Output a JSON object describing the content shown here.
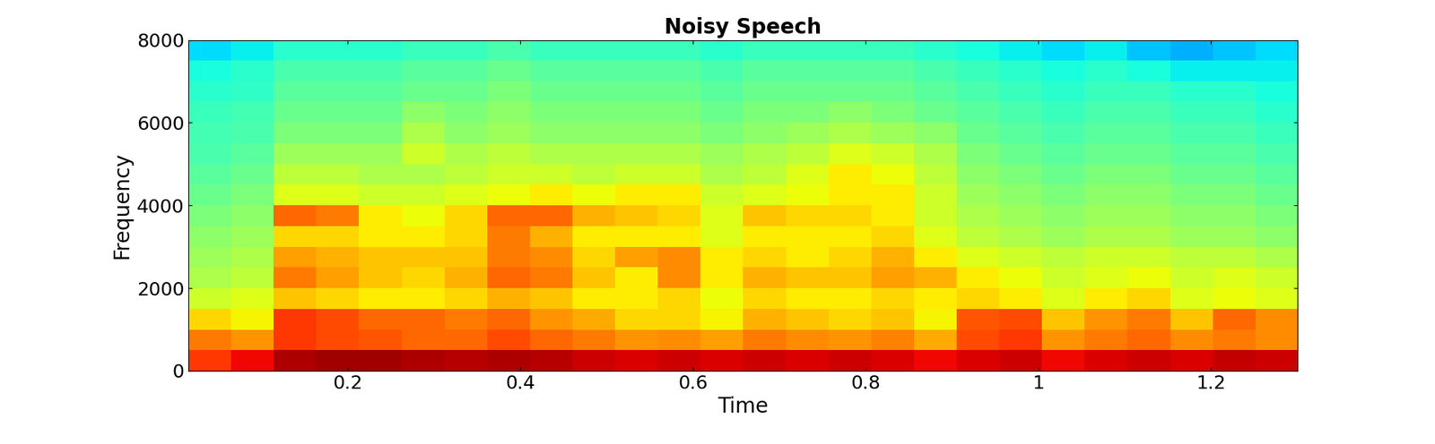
{
  "chart_data": {
    "type": "heatmap",
    "title": "Noisy Speech",
    "x_label": "Time",
    "y_label": "Frequency",
    "xlim": [
      0.015,
      1.3
    ],
    "xticks": [
      0.2,
      0.4,
      0.6,
      0.8,
      1,
      1.2
    ],
    "ylim": [
      0,
      8000
    ],
    "yticks": [
      0,
      2000,
      4000,
      6000,
      8000
    ],
    "color": "jet",
    "color_range": [
      0,
      10
    ],
    "cells": [
      [
        8.5,
        9,
        9.6,
        9.7,
        9.7,
        9.6,
        9.5,
        9.6,
        9.5,
        9.3,
        9.2,
        9.3,
        9.2,
        9.3,
        9.2,
        9.3,
        9.2,
        9.0,
        9.2,
        9.3,
        9.0,
        9.2,
        9.3,
        9.2,
        9.4,
        9.3
      ],
      [
        7.8,
        7.5,
        8.5,
        8.3,
        8.2,
        8.0,
        8.0,
        8.3,
        8.0,
        7.8,
        7.5,
        7.6,
        7.4,
        7.8,
        7.6,
        7.5,
        7.7,
        7.3,
        8.3,
        8.5,
        7.5,
        7.8,
        8.0,
        7.6,
        7.8,
        7.6
      ],
      [
        6.8,
        6.5,
        8.5,
        8.3,
        8.0,
        8.0,
        7.8,
        8.0,
        7.5,
        7.3,
        6.8,
        6.8,
        6.5,
        7.2,
        7.0,
        6.8,
        7.0,
        6.5,
        8.2,
        8.3,
        7.0,
        7.5,
        7.8,
        7.0,
        8.0,
        7.6
      ],
      [
        6.0,
        6.2,
        7.0,
        6.8,
        6.6,
        6.6,
        6.8,
        7.2,
        7.0,
        6.6,
        6.6,
        6.8,
        6.4,
        6.8,
        6.6,
        6.6,
        6.8,
        6.6,
        6.8,
        6.6,
        6.2,
        6.6,
        6.8,
        6.2,
        6.4,
        6.2
      ],
      [
        5.6,
        5.8,
        7.8,
        7.4,
        7.0,
        6.8,
        7.2,
        8.0,
        7.8,
        7.0,
        6.6,
        7.6,
        6.6,
        7.2,
        7.0,
        7.0,
        7.4,
        7.2,
        6.6,
        6.4,
        6.0,
        6.2,
        6.4,
        6.0,
        6.2,
        6.0
      ],
      [
        5.4,
        5.6,
        7.4,
        7.2,
        7.0,
        7.0,
        7.0,
        7.8,
        7.6,
        6.8,
        7.4,
        7.6,
        6.6,
        6.8,
        6.6,
        6.8,
        7.2,
        6.6,
        6.2,
        6.0,
        5.8,
        6.0,
        6.0,
        5.8,
        5.8,
        5.6
      ],
      [
        5.2,
        5.4,
        6.8,
        6.8,
        6.6,
        6.6,
        6.8,
        7.8,
        7.2,
        6.6,
        6.6,
        6.6,
        6.2,
        6.6,
        6.6,
        6.6,
        6.8,
        6.2,
        5.8,
        5.6,
        5.4,
        5.6,
        5.6,
        5.4,
        5.4,
        5.2
      ],
      [
        5.0,
        5.2,
        8.0,
        7.8,
        6.6,
        6.4,
        6.8,
        8.0,
        8.0,
        7.2,
        7.0,
        6.8,
        6.2,
        7.0,
        6.8,
        6.8,
        6.6,
        6.0,
        5.6,
        5.4,
        5.2,
        5.4,
        5.4,
        5.2,
        5.2,
        5.0
      ],
      [
        4.8,
        5.0,
        6.2,
        6.2,
        6.0,
        6.0,
        6.2,
        6.4,
        6.6,
        6.4,
        6.6,
        6.6,
        6.0,
        6.2,
        6.4,
        6.6,
        6.6,
        6.0,
        5.4,
        5.2,
        5.0,
        5.2,
        5.2,
        5.0,
        5.0,
        4.8
      ],
      [
        4.6,
        4.8,
        5.8,
        5.8,
        5.6,
        5.6,
        5.8,
        6.0,
        6.0,
        5.8,
        6.0,
        6.0,
        5.6,
        5.8,
        6.2,
        6.6,
        6.4,
        5.8,
        5.2,
        5.0,
        4.8,
        5.0,
        5.0,
        4.8,
        4.8,
        4.6
      ],
      [
        4.4,
        4.6,
        5.4,
        5.4,
        5.4,
        6.0,
        5.6,
        5.8,
        5.6,
        5.6,
        5.6,
        5.6,
        5.4,
        5.6,
        5.8,
        6.2,
        6.0,
        5.6,
        5.0,
        4.8,
        4.6,
        4.8,
        4.8,
        4.6,
        4.6,
        4.4
      ],
      [
        4.3,
        4.4,
        5.0,
        5.0,
        5.0,
        5.6,
        5.2,
        5.4,
        5.2,
        5.2,
        5.2,
        5.2,
        5.0,
        5.2,
        5.4,
        5.6,
        5.4,
        5.2,
        4.8,
        4.6,
        4.4,
        4.6,
        4.6,
        4.4,
        4.4,
        4.2
      ],
      [
        4.2,
        4.3,
        4.8,
        4.8,
        4.8,
        5.2,
        5.0,
        5.2,
        5.0,
        5.0,
        5.0,
        5.0,
        4.8,
        5.0,
        5.0,
        5.2,
        5.0,
        4.8,
        4.6,
        4.4,
        4.2,
        4.4,
        4.4,
        4.2,
        4.2,
        4.0
      ],
      [
        4.0,
        4.1,
        4.6,
        4.6,
        4.6,
        4.8,
        4.8,
        5.0,
        4.8,
        4.8,
        4.8,
        4.8,
        4.6,
        4.8,
        4.8,
        4.8,
        4.8,
        4.6,
        4.4,
        4.2,
        4.0,
        4.2,
        4.2,
        4.0,
        4.0,
        3.8
      ],
      [
        3.8,
        4.0,
        4.4,
        4.4,
        4.4,
        4.6,
        4.6,
        4.8,
        4.6,
        4.6,
        4.6,
        4.6,
        4.4,
        4.6,
        4.6,
        4.6,
        4.6,
        4.4,
        4.2,
        4.0,
        3.8,
        4.0,
        3.8,
        3.6,
        3.6,
        3.6
      ],
      [
        3.4,
        3.6,
        4.0,
        4.0,
        4.0,
        4.2,
        4.2,
        4.4,
        4.2,
        4.2,
        4.2,
        4.2,
        4.0,
        4.2,
        4.2,
        4.2,
        4.2,
        4.0,
        3.8,
        3.6,
        3.4,
        3.6,
        3.2,
        3.0,
        3.2,
        3.4
      ]
    ]
  }
}
